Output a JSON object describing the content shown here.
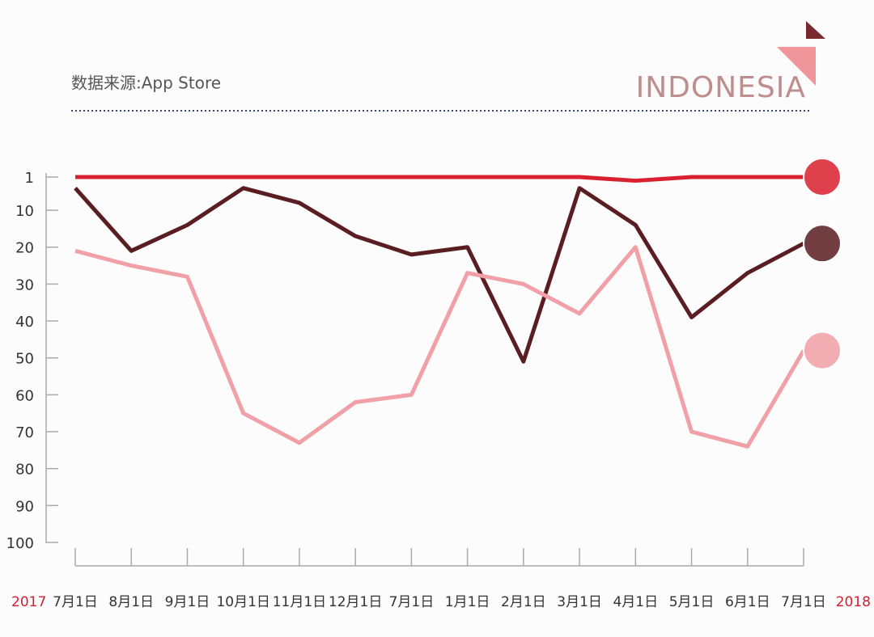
{
  "chart_data": {
    "type": "line",
    "source": "数据来源:App Store",
    "country": "INDONESIA",
    "start_year": "2017",
    "end_year": "2018",
    "categories": [
      "7月1日",
      "8月1日",
      "9月1日",
      "10月1日",
      "11月1日",
      "12月1日",
      "7月1日",
      "1月1日",
      "2月1日",
      "3月1日",
      "4月1日",
      "5月1日",
      "6月1日",
      "7月1日"
    ],
    "series": [
      {
        "color": "#d9202e",
        "values": [
          1,
          1,
          1,
          1,
          1,
          1,
          1,
          1,
          1,
          1,
          2,
          1,
          1,
          1
        ]
      },
      {
        "color": "#5a1e22",
        "values": [
          4,
          21,
          14,
          4,
          8,
          17,
          22,
          20,
          51,
          4,
          14,
          39,
          27,
          19
        ]
      },
      {
        "color": "#f0a0a6",
        "values": [
          21,
          25,
          28,
          65,
          73,
          62,
          60,
          27,
          30,
          38,
          20,
          70,
          74,
          48
        ]
      }
    ],
    "ylim": [
      1,
      100
    ],
    "yticks": [
      1,
      10,
      20,
      30,
      40,
      50,
      60,
      70,
      80,
      90,
      100
    ],
    "y_inverted": true
  }
}
